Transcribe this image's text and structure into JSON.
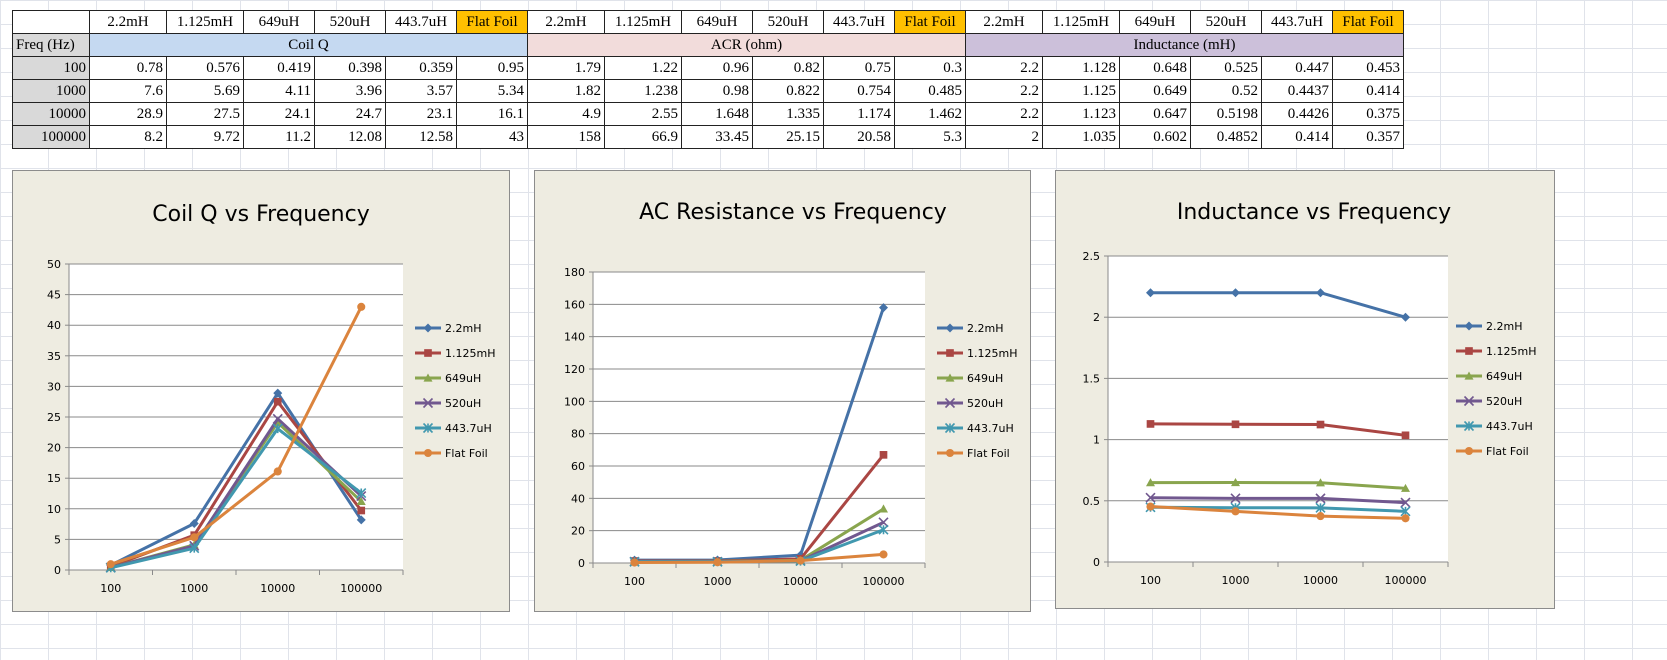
{
  "table": {
    "headers": [
      "2.2mH",
      "1.125mH",
      "649uH",
      "520uH",
      "443.7uH",
      "Flat Foil"
    ],
    "freq_label": "Freq (Hz)",
    "groups": [
      "Coil Q",
      "ACR (ohm)",
      "Inductance (mH)"
    ],
    "rows": [
      {
        "freq": "100",
        "q": [
          "0.78",
          "0.576",
          "0.419",
          "0.398",
          "0.359",
          "0.95"
        ],
        "acr": [
          "1.79",
          "1.22",
          "0.96",
          "0.82",
          "0.75",
          "0.3"
        ],
        "ind": [
          "2.2",
          "1.128",
          "0.648",
          "0.525",
          "0.447",
          "0.453"
        ]
      },
      {
        "freq": "1000",
        "q": [
          "7.6",
          "5.69",
          "4.11",
          "3.96",
          "3.57",
          "5.34"
        ],
        "acr": [
          "1.82",
          "1.238",
          "0.98",
          "0.822",
          "0.754",
          "0.485"
        ],
        "ind": [
          "2.2",
          "1.125",
          "0.649",
          "0.52",
          "0.4437",
          "0.414"
        ]
      },
      {
        "freq": "10000",
        "q": [
          "28.9",
          "27.5",
          "24.1",
          "24.7",
          "23.1",
          "16.1"
        ],
        "acr": [
          "4.9",
          "2.55",
          "1.648",
          "1.335",
          "1.174",
          "1.462"
        ],
        "ind": [
          "2.2",
          "1.123",
          "0.647",
          "0.5198",
          "0.4426",
          "0.375"
        ]
      },
      {
        "freq": "100000",
        "q": [
          "8.2",
          "9.72",
          "11.2",
          "12.08",
          "12.58",
          "43"
        ],
        "acr": [
          "158",
          "66.9",
          "33.45",
          "25.15",
          "20.58",
          "5.3"
        ],
        "ind": [
          "2",
          "1.035",
          "0.602",
          "0.4852",
          "0.414",
          "0.357"
        ]
      }
    ]
  },
  "chart_data": [
    {
      "type": "line",
      "title": "Coil Q  vs  Frequency",
      "categories": [
        "100",
        "1000",
        "10000",
        "100000"
      ],
      "ylim": [
        0,
        50
      ],
      "yticks": [
        "0",
        "5",
        "10",
        "15",
        "20",
        "25",
        "30",
        "35",
        "40",
        "45",
        "50"
      ],
      "grid": true,
      "legend": "right",
      "series": [
        {
          "name": "2.2mH",
          "color": "#4572a7",
          "marker": "diamond",
          "values": [
            0.78,
            7.6,
            28.9,
            8.2
          ]
        },
        {
          "name": "1.125mH",
          "color": "#aa4643",
          "marker": "square",
          "values": [
            0.576,
            5.69,
            27.5,
            9.72
          ]
        },
        {
          "name": "649uH",
          "color": "#89a54e",
          "marker": "triangle",
          "values": [
            0.419,
            4.11,
            24.1,
            11.2
          ]
        },
        {
          "name": "520uH",
          "color": "#71588f",
          "marker": "x",
          "values": [
            0.398,
            3.96,
            24.7,
            12.08
          ]
        },
        {
          "name": "443.7uH",
          "color": "#4198af",
          "marker": "star",
          "values": [
            0.359,
            3.57,
            23.1,
            12.58
          ]
        },
        {
          "name": "Flat Foil",
          "color": "#db843d",
          "marker": "circle",
          "values": [
            0.95,
            5.34,
            16.1,
            43
          ]
        }
      ]
    },
    {
      "type": "line",
      "title": "AC Resistance  vs  Frequency",
      "categories": [
        "100",
        "1000",
        "10000",
        "100000"
      ],
      "ylim": [
        0,
        180
      ],
      "yticks": [
        "0",
        "20",
        "40",
        "60",
        "80",
        "100",
        "120",
        "140",
        "160",
        "180"
      ],
      "grid": true,
      "legend": "right",
      "series": [
        {
          "name": "2.2mH",
          "color": "#4572a7",
          "marker": "diamond",
          "values": [
            1.79,
            1.82,
            4.9,
            158
          ]
        },
        {
          "name": "1.125mH",
          "color": "#aa4643",
          "marker": "square",
          "values": [
            1.22,
            1.238,
            2.55,
            66.9
          ]
        },
        {
          "name": "649uH",
          "color": "#89a54e",
          "marker": "triangle",
          "values": [
            0.96,
            0.98,
            1.648,
            33.45
          ]
        },
        {
          "name": "520uH",
          "color": "#71588f",
          "marker": "x",
          "values": [
            0.82,
            0.822,
            1.335,
            25.15
          ]
        },
        {
          "name": "443.7uH",
          "color": "#4198af",
          "marker": "star",
          "values": [
            0.75,
            0.754,
            1.174,
            20.58
          ]
        },
        {
          "name": "Flat Foil",
          "color": "#db843d",
          "marker": "circle",
          "values": [
            0.3,
            0.485,
            1.462,
            5.3
          ]
        }
      ]
    },
    {
      "type": "line",
      "title": "Inductance vs Frequency",
      "categories": [
        "100",
        "1000",
        "10000",
        "100000"
      ],
      "ylim": [
        0,
        2.5
      ],
      "yticks": [
        "0",
        "0.5",
        "1",
        "1.5",
        "2",
        "2.5"
      ],
      "grid": true,
      "legend": "right",
      "series": [
        {
          "name": "2.2mH",
          "color": "#4572a7",
          "marker": "diamond",
          "values": [
            2.2,
            2.2,
            2.2,
            2
          ]
        },
        {
          "name": "1.125mH",
          "color": "#aa4643",
          "marker": "square",
          "values": [
            1.128,
            1.125,
            1.123,
            1.035
          ]
        },
        {
          "name": "649uH",
          "color": "#89a54e",
          "marker": "triangle",
          "values": [
            0.648,
            0.649,
            0.647,
            0.602
          ]
        },
        {
          "name": "520uH",
          "color": "#71588f",
          "marker": "x",
          "values": [
            0.525,
            0.52,
            0.5198,
            0.4852
          ]
        },
        {
          "name": "443.7uH",
          "color": "#4198af",
          "marker": "star",
          "values": [
            0.447,
            0.4437,
            0.4426,
            0.414
          ]
        },
        {
          "name": "Flat Foil",
          "color": "#db843d",
          "marker": "circle",
          "values": [
            0.453,
            0.414,
            0.375,
            0.357
          ]
        }
      ]
    }
  ]
}
